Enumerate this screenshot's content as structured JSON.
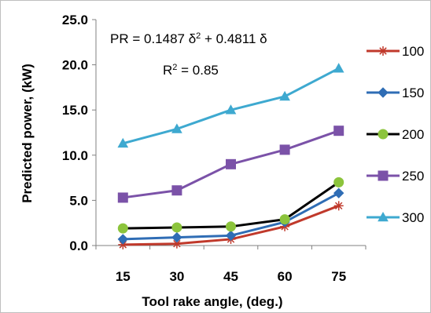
{
  "chart_data": {
    "type": "line",
    "title": "",
    "xlabel": "Tool rake angle, (deg.)",
    "ylabel": "Predicted power, (kW)",
    "categories": [
      15,
      30,
      45,
      60,
      75
    ],
    "ylim": [
      0,
      25
    ],
    "yticks": [
      "0.0",
      "5.0",
      "10.0",
      "15.0",
      "20.0",
      "25.0"
    ],
    "grid": false,
    "legend_position": "right",
    "annotations": {
      "equation_prefix": "PR = 0.1487 δ",
      "equation_exp": "2",
      "equation_suffix": " + 0.4811 δ",
      "r2_prefix": "R",
      "r2_exp": "2",
      "r2_suffix": " = 0.85"
    },
    "series": [
      {
        "name": "100",
        "color": "#c0392b",
        "marker": "star",
        "values": [
          0.1,
          0.2,
          0.7,
          2.1,
          4.4
        ]
      },
      {
        "name": "150",
        "color": "#2f6db5",
        "marker": "diamond",
        "values": [
          0.7,
          0.9,
          1.1,
          2.6,
          5.8
        ]
      },
      {
        "name": "200",
        "color": "#000000",
        "marker": "circle",
        "values": [
          1.9,
          2.0,
          2.1,
          2.9,
          7.0
        ],
        "marker_color": "#8cc43c"
      },
      {
        "name": "250",
        "color": "#7b52a8",
        "marker": "square",
        "values": [
          5.3,
          6.1,
          9.0,
          10.6,
          12.7
        ]
      },
      {
        "name": "300",
        "color": "#3ea9d0",
        "marker": "triangle",
        "values": [
          11.3,
          12.9,
          15.0,
          16.5,
          19.6
        ]
      }
    ]
  }
}
